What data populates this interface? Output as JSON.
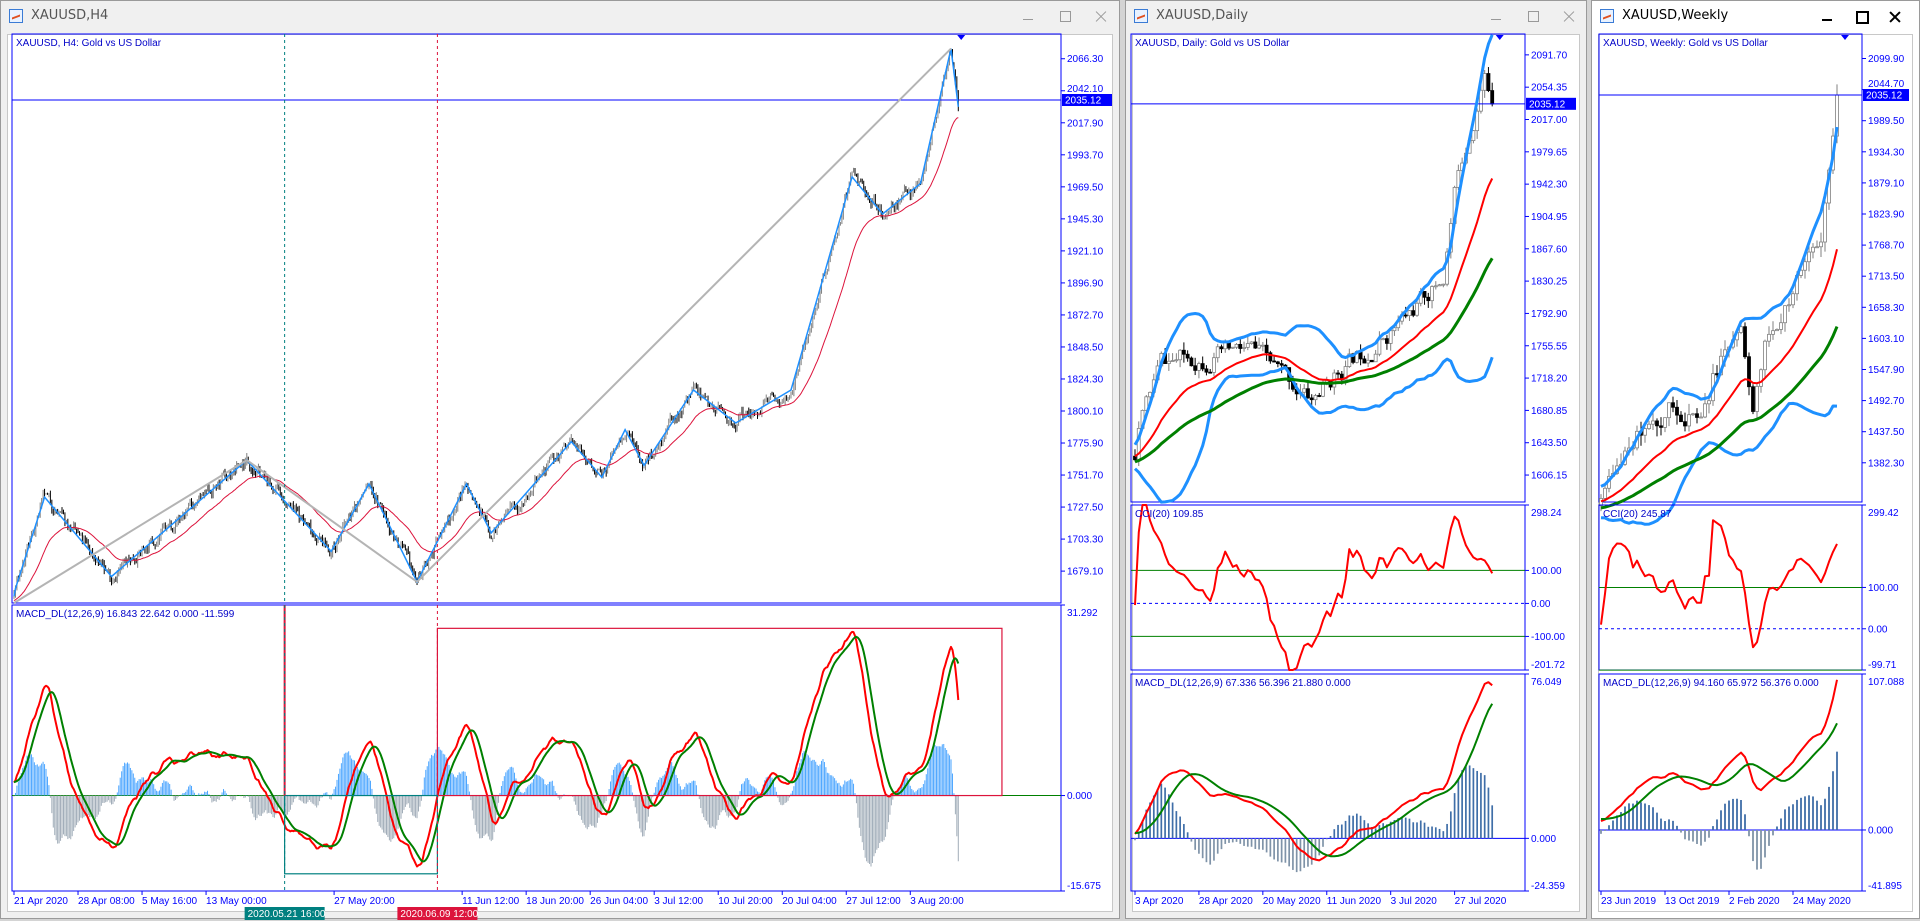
{
  "windows": {
    "h4": {
      "title": "XAUUSD,H4",
      "active": false,
      "symbol_label": "XAUUSD, H4:  Gold vs US Dollar",
      "macd_label": "MACD_DL(12,26,9) 16.843 22.642 0.000 -11.599",
      "current_price": "2035.12",
      "price_ticks": [
        "2066.30",
        "2042.10",
        "2017.90",
        "1993.70",
        "1969.50",
        "1945.30",
        "1921.10",
        "1896.90",
        "1872.70",
        "1848.50",
        "1824.30",
        "1800.10",
        "1775.90",
        "1751.70",
        "1727.50",
        "1703.30",
        "1679.10"
      ],
      "macd_ticks": [
        "31.292",
        "0.000",
        "-15.675"
      ],
      "time_labels": [
        {
          "text": "21 Apr 2020",
          "bar": 0
        },
        {
          "text": "28 Apr 08:00",
          "bar": 44
        },
        {
          "text": "5 May 16:00",
          "bar": 88
        },
        {
          "text": "13 May 00:00",
          "bar": 132
        },
        {
          "text": "27 May 20:00",
          "bar": 220
        },
        {
          "text": "11 Jun 12:00",
          "bar": 308
        },
        {
          "text": "18 Jun 20:00",
          "bar": 352
        },
        {
          "text": "26 Jun 04:00",
          "bar": 396
        },
        {
          "text": "3 Jul 12:00",
          "bar": 440
        },
        {
          "text": "10 Jul 20:00",
          "bar": 484
        },
        {
          "text": "20 Jul 04:00",
          "bar": 528
        },
        {
          "text": "27 Jul 12:00",
          "bar": 572
        },
        {
          "text": "3 Aug 20:00",
          "bar": 616
        }
      ],
      "vlines": [
        {
          "text": "2020.05.21 16:00",
          "bar": 186,
          "color": "#008080"
        },
        {
          "text": "2020.06.09 12:00",
          "bar": 291,
          "color": "#dc143c"
        }
      ]
    },
    "daily": {
      "title": "XAUUSD,Daily",
      "active": false,
      "symbol_label": "XAUUSD, Daily:  Gold vs US Dollar",
      "cci_label": "CCI(20) 109.85",
      "macd_label": "MACD_DL(12,26,9) 67.336 56.396 21.880 0.000",
      "current_price": "2035.12",
      "price_ticks": [
        "2091.70",
        "2054.35",
        "2017.00",
        "1979.65",
        "1942.30",
        "1904.95",
        "1867.60",
        "1830.25",
        "1792.90",
        "1755.55",
        "1718.20",
        "1680.85",
        "1643.50",
        "1606.15"
      ],
      "cci_ticks": [
        "298.24",
        "100.00",
        "0.00",
        "-100.00",
        "-201.72"
      ],
      "macd_ticks": [
        "76.049",
        "0.000",
        "-24.359"
      ],
      "time_labels": [
        {
          "text": "3 Apr 2020",
          "bar": 0
        },
        {
          "text": "28 Apr 2020",
          "bar": 17
        },
        {
          "text": "20 May 2020",
          "bar": 34
        },
        {
          "text": "11 Jun 2020",
          "bar": 51
        },
        {
          "text": "3 Jul 2020",
          "bar": 68
        },
        {
          "text": "27 Jul 2020",
          "bar": 85
        }
      ]
    },
    "weekly": {
      "title": "XAUUSD,Weekly",
      "active": true,
      "symbol_label": "XAUUSD, Weekly:  Gold vs US Dollar",
      "cci_label": "CCI(20) 245.87",
      "macd_label": "MACD_DL(12,26,9) 94.160 65.972 56.376 0.000",
      "current_price": "2035.12",
      "price_ticks": [
        "2099.90",
        "2044.70",
        "1989.50",
        "1934.30",
        "1879.10",
        "1823.90",
        "1768.70",
        "1713.50",
        "1658.30",
        "1603.10",
        "1547.90",
        "1492.70",
        "1437.50",
        "1382.30"
      ],
      "cci_ticks": [
        "299.42",
        "100.00",
        "0.00",
        "-99.71"
      ],
      "macd_ticks": [
        "107.088",
        "0.000",
        "-41.895"
      ],
      "time_labels": [
        {
          "text": "23 Jun 2019",
          "bar": 0
        },
        {
          "text": "13 Oct 2019",
          "bar": 16
        },
        {
          "text": "2 Feb 2020",
          "bar": 32
        },
        {
          "text": "24 May 2020",
          "bar": 48
        }
      ]
    }
  },
  "colors": {
    "axis": "#0000ff",
    "bull_candle": "#808080",
    "bear_candle": "#000000",
    "macd_main": "#ff0000",
    "macd_signal": "#008000",
    "histogram_positive": "#4da6ff",
    "histogram_negative": "#a0acb8",
    "bands": "#1e90ff",
    "ma_fast": "#ff0000",
    "ma_slow": "#008000",
    "zigzag": "#1e90ff",
    "trendline": "#b4b4b4",
    "cci": "#ff0000",
    "cci_levels": "#008000"
  },
  "chart_data": [
    {
      "id": "h4",
      "type": "candlestick",
      "symbol": "XAUUSD",
      "timeframe": "H4",
      "ylim": [
        1655,
        2085
      ],
      "macd_ylim": [
        -15.675,
        31.292
      ],
      "bars": 650,
      "price_path": [
        [
          0,
          1660
        ],
        [
          1,
          1666
        ],
        [
          21,
          1735
        ],
        [
          67,
          1675
        ],
        [
          160,
          1763
        ],
        [
          218,
          1694
        ],
        [
          244,
          1745
        ],
        [
          277,
          1671
        ],
        [
          311,
          1745
        ],
        [
          328,
          1708
        ],
        [
          383,
          1777
        ],
        [
          404,
          1750
        ],
        [
          420,
          1786
        ],
        [
          433,
          1759
        ],
        [
          467,
          1816
        ],
        [
          496,
          1791
        ],
        [
          534,
          1816
        ],
        [
          576,
          1977
        ],
        [
          597,
          1949
        ],
        [
          623,
          1972
        ],
        [
          644,
          2074
        ],
        [
          649,
          2030
        ]
      ],
      "trendlines": [
        [
          [
            0,
            1655
          ],
          [
            160,
            1763
          ]
        ],
        [
          [
            160,
            1763
          ],
          [
            277,
            1671
          ]
        ],
        [
          [
            277,
            1671
          ],
          [
            644,
            2074
          ]
        ]
      ],
      "macd_boxes": [
        {
          "bars": [
            291,
            679
          ],
          "values": [
            0,
            27.46
          ],
          "color": "#dc143c"
        },
        {
          "bars": [
            186,
            291
          ],
          "values": [
            -12.85,
            0
          ],
          "color": "#008080"
        }
      ]
    },
    {
      "id": "daily",
      "type": "candlestick",
      "symbol": "XAUUSD",
      "timeframe": "Daily",
      "ylim": [
        1575,
        2115.8
      ],
      "cci_ylim": [
        -201.72,
        298.24
      ],
      "macd_ylim": [
        -24.359,
        76.049
      ],
      "bars": 96,
      "price_path": [
        [
          0,
          1637
        ],
        [
          1,
          1665
        ],
        [
          7,
          1736
        ],
        [
          31,
          1750
        ],
        [
          47,
          1693
        ],
        [
          57,
          1736
        ],
        [
          73,
          1792
        ],
        [
          82,
          1834
        ],
        [
          86,
          1961
        ],
        [
          93,
          2067
        ],
        [
          95,
          2035
        ]
      ]
    },
    {
      "id": "weekly",
      "type": "candlestick",
      "symbol": "XAUUSD",
      "timeframe": "Weekly",
      "ylim": [
        1312.7,
        2143.4
      ],
      "cci_ylim": [
        -99.71,
        299.42
      ],
      "macd_ylim": [
        -41.895,
        107.088
      ],
      "bars": 60,
      "price_path": [
        [
          0,
          1340
        ],
        [
          1,
          1356
        ],
        [
          8,
          1443
        ],
        [
          17,
          1476
        ],
        [
          25,
          1454
        ],
        [
          29,
          1552
        ],
        [
          35,
          1617
        ],
        [
          38,
          1480
        ],
        [
          41,
          1580
        ],
        [
          51,
          1748
        ],
        [
          55,
          1813
        ],
        [
          58,
          1990
        ],
        [
          59,
          2035
        ]
      ]
    }
  ]
}
